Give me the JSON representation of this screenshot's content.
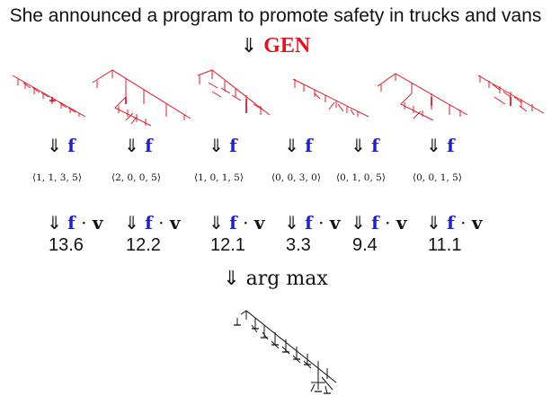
{
  "sentence": "She announced a program to promote safety in trucks and vans",
  "gen_step": {
    "arrow": "⇓",
    "label": "GEN"
  },
  "arrow": "⇓",
  "feature_symbol": "f",
  "dot_symbol": "·",
  "weight_symbol": "v",
  "candidates": [
    {
      "feature_vector": "⟨1, 1, 3, 5⟩",
      "score": "13.6"
    },
    {
      "feature_vector": "⟨2, 0, 0, 5⟩",
      "score": "12.2"
    },
    {
      "feature_vector": "⟨1, 0, 1, 5⟩",
      "score": "12.1"
    },
    {
      "feature_vector": "⟨0, 0, 3, 0⟩",
      "score": "3.3"
    },
    {
      "feature_vector": "⟨0, 1, 0, 5⟩",
      "score": "9.4"
    },
    {
      "feature_vector": "⟨0, 0, 1, 5⟩",
      "score": "11.1"
    }
  ],
  "argmax_step": {
    "arrow": "⇓",
    "label": "arg max"
  },
  "colors": {
    "gen": "#e0141e",
    "tree": "#d81e2a",
    "feature": "#2020c8",
    "best_tree": "#111111"
  }
}
